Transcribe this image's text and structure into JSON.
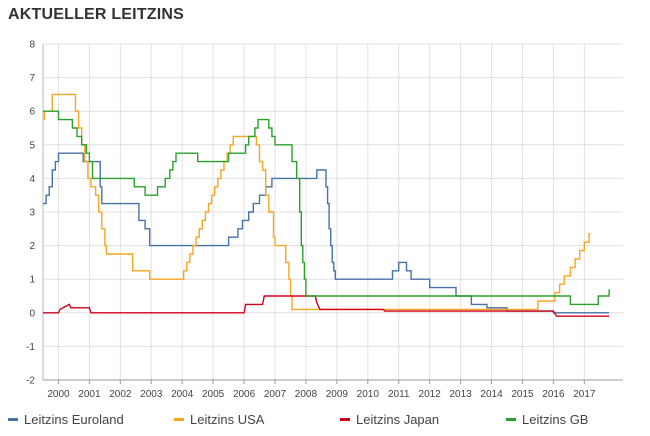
{
  "title": "AKTUELLER LEITZINS",
  "chart_data": {
    "type": "line",
    "xlim": [
      1999.5,
      2018.25
    ],
    "ylim": [
      -2,
      8
    ],
    "grid": true,
    "legend_position": "bottom",
    "x_ticks": [
      "2000",
      "2001",
      "2002",
      "2003",
      "2004",
      "2005",
      "2006",
      "2007",
      "2008",
      "2009",
      "2010",
      "2011",
      "2012",
      "2013",
      "2014",
      "2015",
      "2016",
      "2017"
    ],
    "y_ticks": [
      "-2",
      "-1",
      "0",
      "1",
      "2",
      "3",
      "4",
      "5",
      "6",
      "7",
      "8"
    ],
    "series": [
      {
        "name": "Leitzins Euroland",
        "color": "#4572a7",
        "step": true,
        "points": [
          [
            1999.5,
            3.25
          ],
          [
            1999.6,
            3.5
          ],
          [
            1999.7,
            3.75
          ],
          [
            1999.8,
            4.25
          ],
          [
            1999.9,
            4.5
          ],
          [
            2000.0,
            4.75
          ],
          [
            2000.45,
            4.75
          ],
          [
            2000.8,
            4.5
          ],
          [
            2001.1,
            4.5
          ],
          [
            2001.35,
            3.75
          ],
          [
            2001.4,
            3.25
          ],
          [
            2002.5,
            3.25
          ],
          [
            2002.6,
            2.75
          ],
          [
            2002.8,
            2.5
          ],
          [
            2002.95,
            2.0
          ],
          [
            2003.0,
            2.0
          ],
          [
            2004.0,
            2.0
          ],
          [
            2005.0,
            2.0
          ],
          [
            2005.45,
            2.0
          ],
          [
            2005.5,
            2.25
          ],
          [
            2005.7,
            2.25
          ],
          [
            2005.8,
            2.5
          ],
          [
            2005.95,
            2.75
          ],
          [
            2006.15,
            3.0
          ],
          [
            2006.3,
            3.25
          ],
          [
            2006.5,
            3.5
          ],
          [
            2006.7,
            3.75
          ],
          [
            2006.9,
            4.0
          ],
          [
            2008.3,
            4.0
          ],
          [
            2008.35,
            4.25
          ],
          [
            2008.6,
            4.25
          ],
          [
            2008.65,
            3.75
          ],
          [
            2008.7,
            3.25
          ],
          [
            2008.75,
            2.5
          ],
          [
            2008.8,
            2.0
          ],
          [
            2008.85,
            1.5
          ],
          [
            2008.9,
            1.25
          ],
          [
            2008.95,
            1.0
          ],
          [
            2010.75,
            1.0
          ],
          [
            2010.8,
            1.25
          ],
          [
            2011.0,
            1.5
          ],
          [
            2011.25,
            1.25
          ],
          [
            2011.4,
            1.0
          ],
          [
            2011.95,
            1.0
          ],
          [
            2012.0,
            0.75
          ],
          [
            2012.8,
            0.75
          ],
          [
            2012.85,
            0.5
          ],
          [
            2013.3,
            0.5
          ],
          [
            2013.35,
            0.25
          ],
          [
            2013.8,
            0.25
          ],
          [
            2013.85,
            0.15
          ],
          [
            2014.45,
            0.15
          ],
          [
            2014.5,
            0.05
          ],
          [
            2015.8,
            0.05
          ],
          [
            2016.0,
            0.0
          ],
          [
            2017.8,
            0.0
          ]
        ]
      },
      {
        "name": "Leitzins USA",
        "color": "#f5a623",
        "step": true,
        "points": [
          [
            1999.5,
            5.75
          ],
          [
            1999.55,
            6.0
          ],
          [
            1999.8,
            6.5
          ],
          [
            2000.0,
            6.5
          ],
          [
            2000.5,
            6.5
          ],
          [
            2000.55,
            6.0
          ],
          [
            2000.65,
            5.5
          ],
          [
            2000.75,
            5.0
          ],
          [
            2000.85,
            4.5
          ],
          [
            2000.95,
            4.0
          ],
          [
            2001.05,
            3.75
          ],
          [
            2001.2,
            3.5
          ],
          [
            2001.3,
            3.0
          ],
          [
            2001.4,
            2.5
          ],
          [
            2001.5,
            2.0
          ],
          [
            2001.55,
            1.75
          ],
          [
            2002.0,
            1.75
          ],
          [
            2002.35,
            1.75
          ],
          [
            2002.4,
            1.25
          ],
          [
            2002.9,
            1.25
          ],
          [
            2002.95,
            1.0
          ],
          [
            2004.0,
            1.0
          ],
          [
            2004.05,
            1.25
          ],
          [
            2004.15,
            1.5
          ],
          [
            2004.25,
            1.75
          ],
          [
            2004.35,
            2.0
          ],
          [
            2004.45,
            2.25
          ],
          [
            2004.55,
            2.5
          ],
          [
            2004.65,
            2.75
          ],
          [
            2004.75,
            3.0
          ],
          [
            2004.85,
            3.25
          ],
          [
            2004.95,
            3.5
          ],
          [
            2005.05,
            3.75
          ],
          [
            2005.15,
            4.0
          ],
          [
            2005.25,
            4.25
          ],
          [
            2005.35,
            4.5
          ],
          [
            2005.45,
            4.75
          ],
          [
            2005.55,
            5.0
          ],
          [
            2005.65,
            5.25
          ],
          [
            2006.3,
            5.25
          ],
          [
            2006.4,
            5.0
          ],
          [
            2006.5,
            4.5
          ],
          [
            2006.6,
            4.25
          ],
          [
            2006.7,
            3.5
          ],
          [
            2006.8,
            3.0
          ],
          [
            2006.95,
            2.25
          ],
          [
            2007.0,
            2.0
          ],
          [
            2007.3,
            2.0
          ],
          [
            2007.35,
            1.5
          ],
          [
            2007.45,
            1.0
          ],
          [
            2007.5,
            0.5
          ],
          [
            2007.55,
            0.1
          ],
          [
            2008.0,
            0.1
          ],
          [
            2014.0,
            0.1
          ],
          [
            2015.0,
            0.1
          ],
          [
            2015.45,
            0.1
          ],
          [
            2015.5,
            0.35
          ],
          [
            2016.0,
            0.35
          ],
          [
            2016.05,
            0.6
          ],
          [
            2016.2,
            0.85
          ],
          [
            2016.35,
            1.1
          ],
          [
            2016.55,
            1.35
          ],
          [
            2016.7,
            1.6
          ],
          [
            2016.85,
            1.85
          ],
          [
            2017.0,
            2.1
          ],
          [
            2017.15,
            2.35
          ],
          [
            2017.2,
            2.35
          ]
        ]
      },
      {
        "name": "Leitzins Japan",
        "color": "#d0021b",
        "step": false,
        "points": [
          [
            1999.5,
            0.0
          ],
          [
            2000.0,
            0.0
          ],
          [
            2000.05,
            0.1
          ],
          [
            2000.35,
            0.25
          ],
          [
            2000.4,
            0.15
          ],
          [
            2001.0,
            0.15
          ],
          [
            2001.05,
            0.0
          ],
          [
            2002.0,
            0.0
          ],
          [
            2003.0,
            0.0
          ],
          [
            2004.0,
            0.0
          ],
          [
            2005.0,
            0.0
          ],
          [
            2006.0,
            0.0
          ],
          [
            2006.05,
            0.25
          ],
          [
            2006.6,
            0.25
          ],
          [
            2006.65,
            0.5
          ],
          [
            2007.0,
            0.5
          ],
          [
            2008.0,
            0.5
          ],
          [
            2008.3,
            0.5
          ],
          [
            2008.35,
            0.3
          ],
          [
            2008.45,
            0.1
          ],
          [
            2009.0,
            0.1
          ],
          [
            2010.0,
            0.1
          ],
          [
            2010.5,
            0.1
          ],
          [
            2010.55,
            0.05
          ],
          [
            2014.0,
            0.05
          ],
          [
            2015.0,
            0.05
          ],
          [
            2016.0,
            0.05
          ],
          [
            2016.1,
            -0.1
          ],
          [
            2016.5,
            -0.1
          ],
          [
            2017.0,
            -0.1
          ],
          [
            2017.8,
            -0.1
          ]
        ]
      },
      {
        "name": "Leitzins GB",
        "color": "#2ca02c",
        "step": true,
        "points": [
          [
            1999.5,
            6.0
          ],
          [
            1999.6,
            6.0
          ],
          [
            2000.0,
            5.75
          ],
          [
            2000.2,
            5.75
          ],
          [
            2000.4,
            5.75
          ],
          [
            2000.45,
            5.5
          ],
          [
            2000.6,
            5.25
          ],
          [
            2000.75,
            5.0
          ],
          [
            2000.9,
            4.75
          ],
          [
            2001.0,
            4.5
          ],
          [
            2001.1,
            4.0
          ],
          [
            2001.2,
            4.0
          ],
          [
            2002.4,
            4.0
          ],
          [
            2002.45,
            3.75
          ],
          [
            2002.75,
            3.75
          ],
          [
            2002.8,
            3.5
          ],
          [
            2003.15,
            3.5
          ],
          [
            2003.2,
            3.75
          ],
          [
            2003.4,
            3.75
          ],
          [
            2003.45,
            4.0
          ],
          [
            2003.6,
            4.25
          ],
          [
            2003.7,
            4.5
          ],
          [
            2003.8,
            4.75
          ],
          [
            2004.45,
            4.75
          ],
          [
            2004.5,
            4.5
          ],
          [
            2005.45,
            4.5
          ],
          [
            2005.5,
            4.75
          ],
          [
            2006.0,
            4.75
          ],
          [
            2006.05,
            5.0
          ],
          [
            2006.15,
            5.25
          ],
          [
            2006.35,
            5.5
          ],
          [
            2006.45,
            5.75
          ],
          [
            2006.75,
            5.75
          ],
          [
            2006.8,
            5.5
          ],
          [
            2006.9,
            5.25
          ],
          [
            2007.0,
            5.0
          ],
          [
            2007.5,
            5.0
          ],
          [
            2007.55,
            4.5
          ],
          [
            2007.7,
            4.0
          ],
          [
            2007.8,
            3.0
          ],
          [
            2007.85,
            2.0
          ],
          [
            2007.9,
            1.5
          ],
          [
            2007.95,
            1.0
          ],
          [
            2008.0,
            0.5
          ],
          [
            2009.0,
            0.5
          ],
          [
            2016.0,
            0.5
          ],
          [
            2016.55,
            0.25
          ],
          [
            2017.0,
            0.25
          ],
          [
            2017.4,
            0.25
          ],
          [
            2017.45,
            0.5
          ],
          [
            2017.75,
            0.5
          ],
          [
            2017.8,
            0.7
          ]
        ]
      }
    ]
  }
}
